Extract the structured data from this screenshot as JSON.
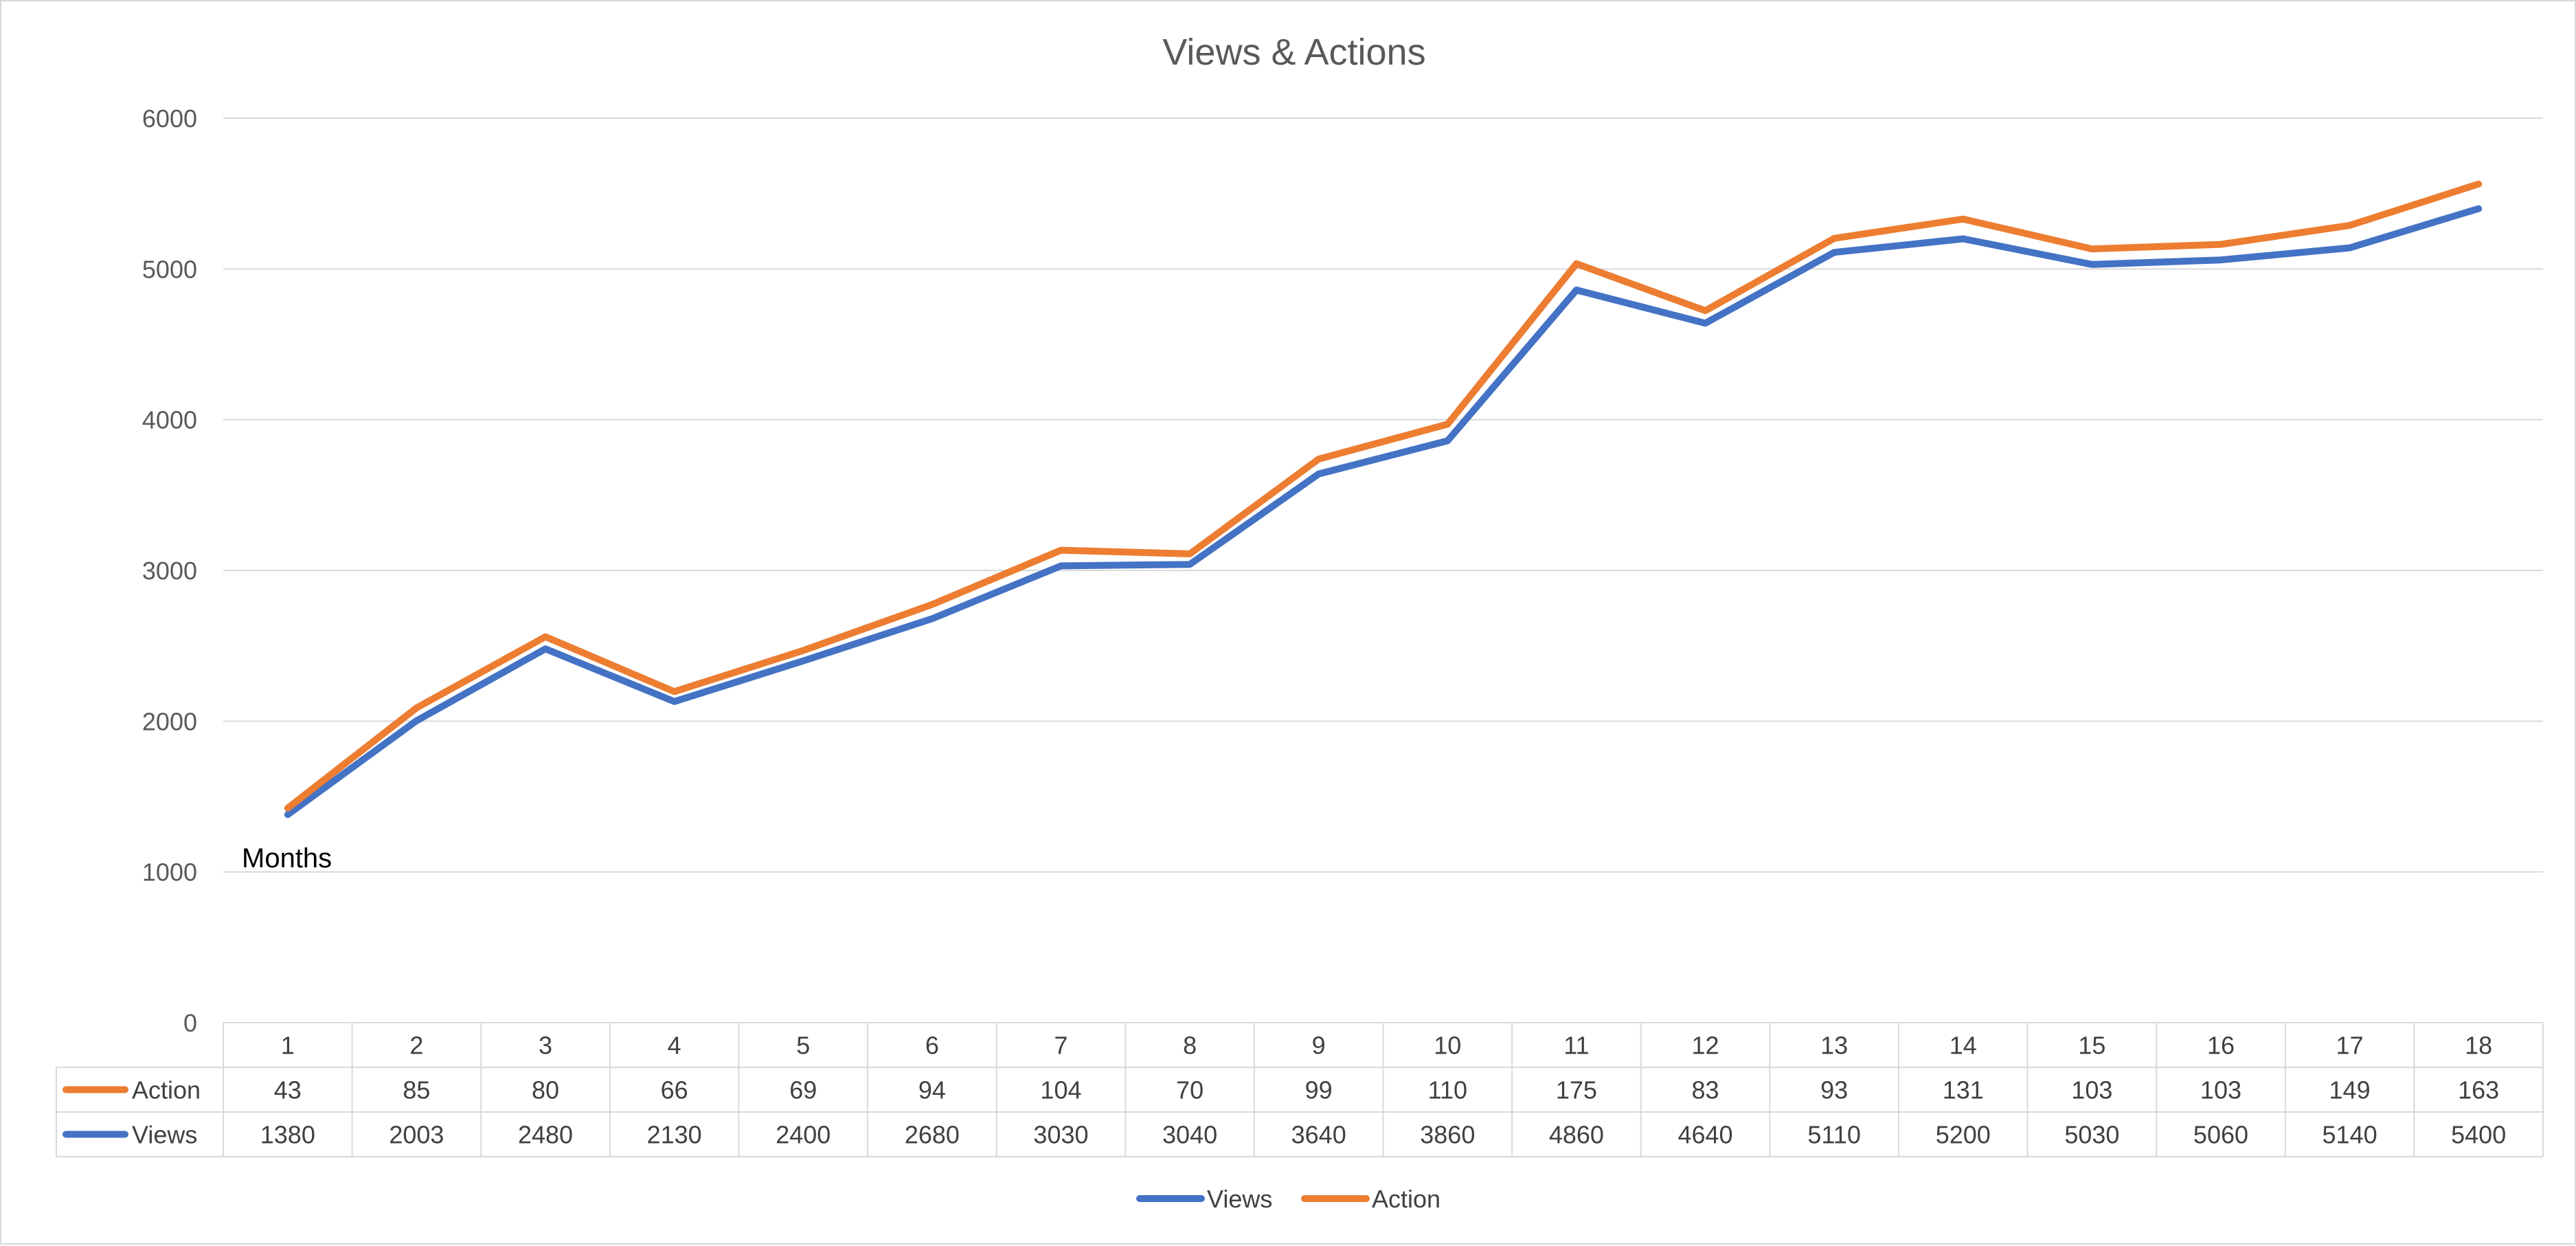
{
  "chart_data": {
    "type": "line",
    "title": "Views & Actions",
    "annotation": "Months",
    "categories": [
      "1",
      "2",
      "3",
      "4",
      "5",
      "6",
      "7",
      "8",
      "9",
      "10",
      "11",
      "12",
      "13",
      "14",
      "15",
      "16",
      "17",
      "18"
    ],
    "ylim": [
      0,
      6000
    ],
    "yticks": [
      0,
      1000,
      2000,
      3000,
      4000,
      5000,
      6000
    ],
    "grid": true,
    "legend": "bottom",
    "table_rows": [
      {
        "name": "Action",
        "values": [
          43,
          85,
          80,
          66,
          69,
          94,
          104,
          70,
          99,
          110,
          175,
          83,
          93,
          131,
          103,
          103,
          149,
          163
        ]
      },
      {
        "name": "Views",
        "values": [
          1380,
          2003,
          2480,
          2130,
          2400,
          2680,
          3030,
          3040,
          3640,
          3860,
          4860,
          4640,
          5110,
          5200,
          5030,
          5060,
          5140,
          5400
        ]
      }
    ],
    "series": [
      {
        "name": "Views",
        "color": "#4472C4",
        "values": [
          1380,
          2003,
          2480,
          2130,
          2400,
          2680,
          3030,
          3040,
          3640,
          3860,
          4860,
          4640,
          5110,
          5200,
          5030,
          5060,
          5140,
          5400
        ]
      },
      {
        "name": "Action",
        "color": "#ED7D31",
        "values": [
          1423,
          2088,
          2560,
          2196,
          2469,
          2774,
          3134,
          3110,
          3739,
          3970,
          5035,
          4723,
          5203,
          5331,
          5133,
          5163,
          5289,
          5563
        ]
      }
    ]
  }
}
